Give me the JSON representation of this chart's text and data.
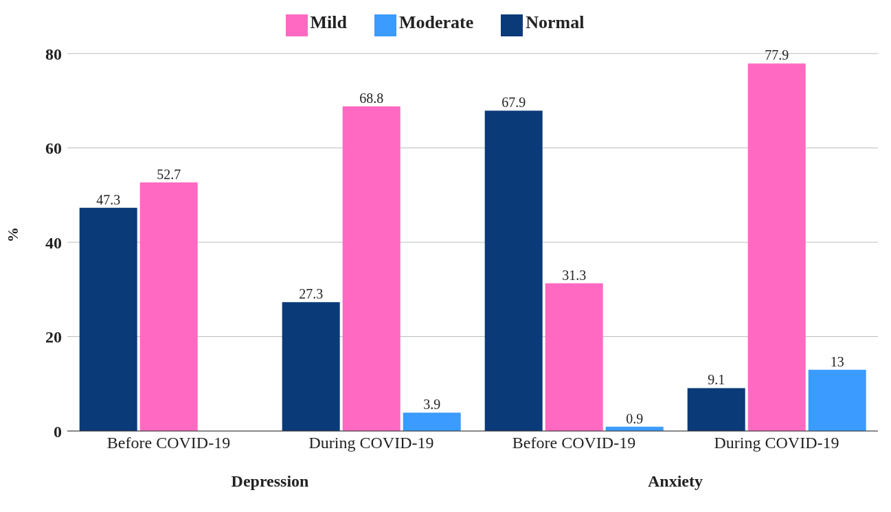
{
  "chart_data": {
    "type": "bar",
    "ylabel": "%",
    "categories": [
      "Before COVID-19",
      "During COVID-19",
      "Before COVID-19",
      "During COVID-19"
    ],
    "series": [
      {
        "name": "Normal",
        "color": "#0b3a78",
        "values": [
          47.3,
          27.3,
          67.9,
          9.1
        ]
      },
      {
        "name": "Mild",
        "color": "#ff69c2",
        "values": [
          52.7,
          68.8,
          31.3,
          77.9
        ]
      },
      {
        "name": "Moderate",
        "color": "#3b9bff",
        "values": [
          null,
          3.9,
          0.9,
          13
        ]
      }
    ],
    "ylim": [
      0,
      80
    ],
    "yticks": [
      0,
      20,
      40,
      60,
      80
    ],
    "grid": "y",
    "legend": "top",
    "data_labels": true,
    "annotations": [
      "Depression",
      "Anxiety"
    ]
  }
}
